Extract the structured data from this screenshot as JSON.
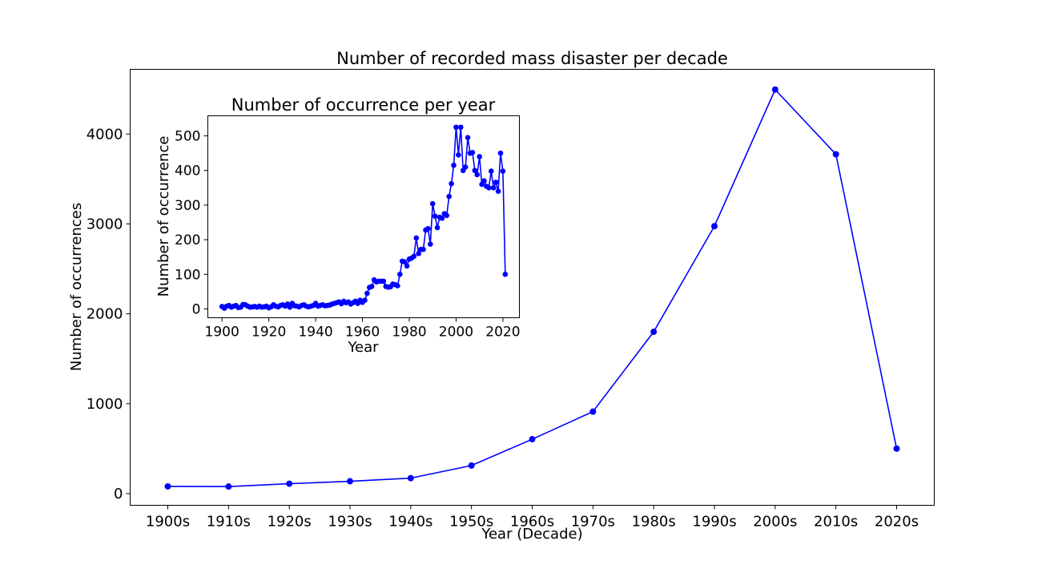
{
  "chart_data": [
    {
      "type": "line",
      "title": "Number of recorded mass disaster per decade",
      "xlabel": "Year (Decade)",
      "ylabel": "Number of occurrences",
      "categories": [
        "1900s",
        "1910s",
        "1920s",
        "1930s",
        "1940s",
        "1950s",
        "1960s",
        "1970s",
        "1980s",
        "1990s",
        "2000s",
        "2010s",
        "2020s"
      ],
      "values": [
        80,
        78,
        110,
        137,
        172,
        312,
        605,
        912,
        1800,
        2975,
        4495,
        3775,
        500
      ],
      "ylim": [
        -130,
        4720
      ],
      "yticks": [
        0,
        1000,
        2000,
        3000,
        4000
      ],
      "grid": false,
      "color": "#0000ff"
    },
    {
      "type": "line",
      "title": "Number of occurrence per year",
      "xlabel": "Year",
      "ylabel": "Number of occurrence",
      "xlim": [
        1893.95,
        2027.05
      ],
      "ylim": [
        -25.5,
        558
      ],
      "xticks": [
        1900,
        1920,
        1940,
        1960,
        1980,
        2000,
        2020
      ],
      "yticks": [
        0,
        100,
        200,
        300,
        400,
        500
      ],
      "grid": false,
      "color": "#0000ff",
      "x": [
        1900,
        1901,
        1902,
        1903,
        1904,
        1905,
        1906,
        1907,
        1908,
        1909,
        1910,
        1911,
        1912,
        1913,
        1914,
        1915,
        1916,
        1917,
        1918,
        1919,
        1920,
        1921,
        1922,
        1923,
        1924,
        1925,
        1926,
        1927,
        1928,
        1929,
        1930,
        1931,
        1932,
        1933,
        1934,
        1935,
        1936,
        1937,
        1938,
        1939,
        1940,
        1941,
        1942,
        1943,
        1944,
        1945,
        1946,
        1947,
        1948,
        1949,
        1950,
        1951,
        1952,
        1953,
        1954,
        1955,
        1956,
        1957,
        1958,
        1959,
        1960,
        1961,
        1962,
        1963,
        1964,
        1965,
        1966,
        1967,
        1968,
        1969,
        1970,
        1971,
        1972,
        1973,
        1974,
        1975,
        1976,
        1977,
        1978,
        1979,
        1980,
        1981,
        1982,
        1983,
        1984,
        1985,
        1986,
        1987,
        1988,
        1989,
        1990,
        1991,
        1992,
        1993,
        1994,
        1995,
        1996,
        1997,
        1998,
        1999,
        2000,
        2001,
        2002,
        2003,
        2004,
        2005,
        2006,
        2007,
        2008,
        2009,
        2010,
        2011,
        2012,
        2013,
        2014,
        2015,
        2016,
        2017,
        2018,
        2019,
        2020,
        2021
      ],
      "y": [
        7,
        2,
        8,
        10,
        5,
        8,
        10,
        4,
        5,
        13,
        12,
        8,
        5,
        6,
        7,
        5,
        8,
        5,
        6,
        8,
        3,
        6,
        12,
        8,
        6,
        10,
        12,
        8,
        14,
        5,
        16,
        9,
        8,
        6,
        10,
        12,
        8,
        6,
        8,
        10,
        16,
        8,
        10,
        12,
        9,
        10,
        11,
        14,
        16,
        18,
        20,
        15,
        22,
        18,
        20,
        14,
        18,
        22,
        16,
        25,
        19,
        25,
        45,
        62,
        65,
        84,
        78,
        80,
        80,
        80,
        65,
        63,
        64,
        72,
        70,
        67,
        100,
        138,
        136,
        124,
        144,
        147,
        152,
        205,
        160,
        172,
        172,
        228,
        232,
        187,
        304,
        268,
        235,
        265,
        262,
        275,
        270,
        325,
        362,
        415,
        525,
        445,
        525,
        400,
        410,
        495,
        450,
        452,
        400,
        388,
        440,
        360,
        370,
        354,
        350,
        398,
        350,
        366,
        340,
        450,
        398,
        100
      ]
    }
  ]
}
